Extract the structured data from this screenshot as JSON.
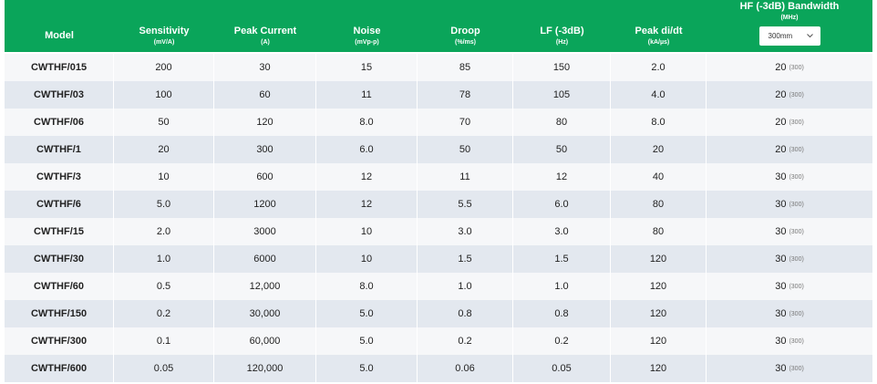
{
  "table": {
    "columns": [
      {
        "title": "Model"
      },
      {
        "title": "Sensitivity",
        "unit": "(mV/A)"
      },
      {
        "title": "Peak Current",
        "unit": "(A)"
      },
      {
        "title": "Noise",
        "unit": "(mVp-p)"
      },
      {
        "title": "Droop",
        "unit": "(%/ms)"
      },
      {
        "title": "LF (-3dB)",
        "unit": "(Hz)"
      },
      {
        "title": "Peak di/dt",
        "unit": "(kA/µs)"
      },
      {
        "title": "HF (-3dB) Bandwidth",
        "unit": "(MHz)",
        "selector": "300mm"
      }
    ],
    "rows": [
      [
        "CWTHF/015",
        "200",
        "30",
        "15",
        "85",
        "150",
        "2.0",
        {
          "value": "20",
          "note": "(300)"
        }
      ],
      [
        "CWTHF/03",
        "100",
        "60",
        "11",
        "78",
        "105",
        "4.0",
        {
          "value": "20",
          "note": "(300)"
        }
      ],
      [
        "CWTHF/06",
        "50",
        "120",
        "8.0",
        "70",
        "80",
        "8.0",
        {
          "value": "20",
          "note": "(300)"
        }
      ],
      [
        "CWTHF/1",
        "20",
        "300",
        "6.0",
        "50",
        "50",
        "20",
        {
          "value": "20",
          "note": "(300)"
        }
      ],
      [
        "CWTHF/3",
        "10",
        "600",
        "12",
        "11",
        "12",
        "40",
        {
          "value": "30",
          "note": "(300)"
        }
      ],
      [
        "CWTHF/6",
        "5.0",
        "1200",
        "12",
        "5.5",
        "6.0",
        "80",
        {
          "value": "30",
          "note": "(300)"
        }
      ],
      [
        "CWTHF/15",
        "2.0",
        "3000",
        "10",
        "3.0",
        "3.0",
        "80",
        {
          "value": "30",
          "note": "(300)"
        }
      ],
      [
        "CWTHF/30",
        "1.0",
        "6000",
        "10",
        "1.5",
        "1.5",
        "120",
        {
          "value": "30",
          "note": "(300)"
        }
      ],
      [
        "CWTHF/60",
        "0.5",
        "12,000",
        "8.0",
        "1.0",
        "1.0",
        "120",
        {
          "value": "30",
          "note": "(300)"
        }
      ],
      [
        "CWTHF/150",
        "0.2",
        "30,000",
        "5.0",
        "0.8",
        "0.8",
        "120",
        {
          "value": "30",
          "note": "(300)"
        }
      ],
      [
        "CWTHF/300",
        "0.1",
        "60,000",
        "5.0",
        "0.2",
        "0.2",
        "120",
        {
          "value": "30",
          "note": "(300)"
        }
      ],
      [
        "CWTHF/600",
        "0.05",
        "120,000",
        "5.0",
        "0.06",
        "0.05",
        "120",
        {
          "value": "30",
          "note": "(300)"
        }
      ]
    ]
  }
}
